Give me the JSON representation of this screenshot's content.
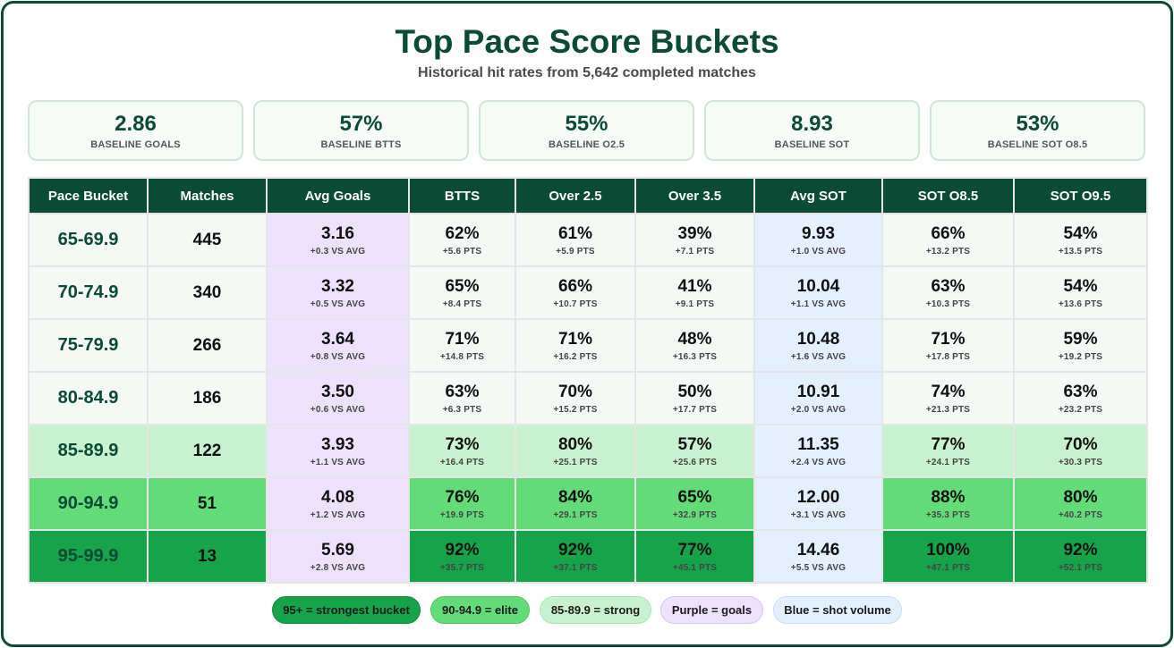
{
  "header": {
    "title": "Top Pace Score Buckets",
    "subtitle": "Historical hit rates from 5,642 completed matches"
  },
  "stats": [
    {
      "value": "2.86",
      "label": "BASELINE GOALS"
    },
    {
      "value": "57%",
      "label": "BASELINE BTTS"
    },
    {
      "value": "55%",
      "label": "BASELINE O2.5"
    },
    {
      "value": "8.93",
      "label": "BASELINE SOT"
    },
    {
      "value": "53%",
      "label": "BASELINE SOT O8.5"
    }
  ],
  "chart_data": {
    "type": "table",
    "columns": [
      "Pace Bucket",
      "Matches",
      "Avg Goals",
      "BTTS",
      "Over 2.5",
      "Over 3.5",
      "Avg SOT",
      "SOT O8.5",
      "SOT O9.5"
    ],
    "rows": [
      {
        "bucket": "65-69.9",
        "matches": "445",
        "tier": "base",
        "cells": [
          [
            "3.16",
            "+0.3 VS AVG"
          ],
          [
            "62%",
            "+5.6 PTS"
          ],
          [
            "61%",
            "+5.9 PTS"
          ],
          [
            "39%",
            "+7.1 PTS"
          ],
          [
            "9.93",
            "+1.0 VS AVG"
          ],
          [
            "66%",
            "+13.2 PTS"
          ],
          [
            "54%",
            "+13.5 PTS"
          ]
        ]
      },
      {
        "bucket": "70-74.9",
        "matches": "340",
        "tier": "base",
        "cells": [
          [
            "3.32",
            "+0.5 VS AVG"
          ],
          [
            "65%",
            "+8.4 PTS"
          ],
          [
            "66%",
            "+10.7 PTS"
          ],
          [
            "41%",
            "+9.1 PTS"
          ],
          [
            "10.04",
            "+1.1 VS AVG"
          ],
          [
            "63%",
            "+10.3 PTS"
          ],
          [
            "54%",
            "+13.6 PTS"
          ]
        ]
      },
      {
        "bucket": "75-79.9",
        "matches": "266",
        "tier": "base",
        "cells": [
          [
            "3.64",
            "+0.8 VS AVG"
          ],
          [
            "71%",
            "+14.8 PTS"
          ],
          [
            "71%",
            "+16.2 PTS"
          ],
          [
            "48%",
            "+16.3 PTS"
          ],
          [
            "10.48",
            "+1.6 VS AVG"
          ],
          [
            "71%",
            "+17.8 PTS"
          ],
          [
            "59%",
            "+19.2 PTS"
          ]
        ]
      },
      {
        "bucket": "80-84.9",
        "matches": "186",
        "tier": "base",
        "cells": [
          [
            "3.50",
            "+0.6 VS AVG"
          ],
          [
            "63%",
            "+6.3 PTS"
          ],
          [
            "70%",
            "+15.2 PTS"
          ],
          [
            "50%",
            "+17.7 PTS"
          ],
          [
            "10.91",
            "+2.0 VS AVG"
          ],
          [
            "74%",
            "+21.3 PTS"
          ],
          [
            "63%",
            "+23.2 PTS"
          ]
        ]
      },
      {
        "bucket": "85-89.9",
        "matches": "122",
        "tier": "strong",
        "cells": [
          [
            "3.93",
            "+1.1 VS AVG"
          ],
          [
            "73%",
            "+16.4 PTS"
          ],
          [
            "80%",
            "+25.1 PTS"
          ],
          [
            "57%",
            "+25.6 PTS"
          ],
          [
            "11.35",
            "+2.4 VS AVG"
          ],
          [
            "77%",
            "+24.1 PTS"
          ],
          [
            "70%",
            "+30.3 PTS"
          ]
        ]
      },
      {
        "bucket": "90-94.9",
        "matches": "51",
        "tier": "elite",
        "cells": [
          [
            "4.08",
            "+1.2 VS AVG"
          ],
          [
            "76%",
            "+19.9 PTS"
          ],
          [
            "84%",
            "+29.1 PTS"
          ],
          [
            "65%",
            "+32.9 PTS"
          ],
          [
            "12.00",
            "+3.1 VS AVG"
          ],
          [
            "88%",
            "+35.3 PTS"
          ],
          [
            "80%",
            "+40.2 PTS"
          ]
        ]
      },
      {
        "bucket": "95-99.9",
        "matches": "13",
        "tier": "strongest",
        "cells": [
          [
            "5.69",
            "+2.8 VS AVG"
          ],
          [
            "92%",
            "+35.7 PTS"
          ],
          [
            "92%",
            "+37.1 PTS"
          ],
          [
            "77%",
            "+45.1 PTS"
          ],
          [
            "14.46",
            "+5.5 VS AVG"
          ],
          [
            "100%",
            "+47.1 PTS"
          ],
          [
            "92%",
            "+52.1 PTS"
          ]
        ]
      }
    ]
  },
  "colors": {
    "header": "#0b4a35",
    "base": "#f4f9f6",
    "strong": "#c8f2cf",
    "elite": "#63db78",
    "strongest": "#16a34a",
    "goals": "#ece2fc",
    "sot": "#e4f0ff"
  },
  "legend": [
    {
      "label": "95+ = strongest bucket",
      "color": "#16a34a",
      "border": "#0f8a3c"
    },
    {
      "label": "90-94.9 = elite",
      "color": "#63db78",
      "border": "#4cc764"
    },
    {
      "label": "85-89.9 = strong",
      "color": "#c8f2cf",
      "border": "#a9e3b4"
    },
    {
      "label": "Purple = goals",
      "color": "#ece2fc",
      "border": "#d6c6f3"
    },
    {
      "label": "Blue = shot volume",
      "color": "#e4f0ff",
      "border": "#c7dcf5"
    }
  ]
}
